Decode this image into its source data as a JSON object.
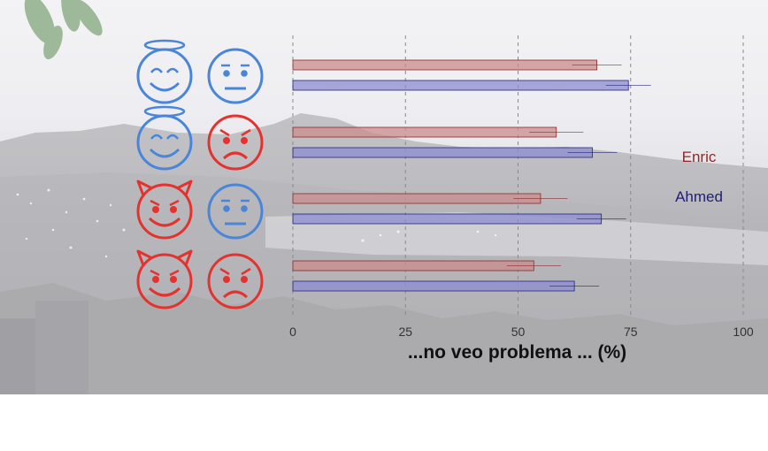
{
  "chart_data": {
    "type": "bar",
    "orientation": "horizontal",
    "xlabel": "...no veo problema ... (%)",
    "xlim": [
      0,
      100
    ],
    "xticks": [
      0,
      25,
      50,
      75,
      100
    ],
    "grid": "vertical dashed",
    "categories": [
      "angel-neutral",
      "angel-angry",
      "devil-neutral",
      "devil-angry"
    ],
    "series": [
      {
        "name": "Enric",
        "color": "#c98c8c",
        "stroke": "#8b2a2a",
        "values": [
          67.5,
          58.5,
          55,
          53.5
        ],
        "error": [
          5.5,
          6,
          6,
          6
        ]
      },
      {
        "name": "Ahmed",
        "color": "#8c8cd0",
        "stroke": "#23237a",
        "values": [
          74.5,
          66.5,
          68.5,
          62.5
        ],
        "error": [
          5,
          5.5,
          5.5,
          5.5
        ]
      }
    ],
    "legend_placement": "right"
  },
  "colors": {
    "legend_enric": "#8b2a2a",
    "legend_ahmed": "#1e1e7a",
    "face_blue": "#4a86d8",
    "face_red": "#e4332e"
  },
  "face_rows": [
    {
      "left": "angel-face-icon",
      "right": "neutral-face-icon"
    },
    {
      "left": "angel-face-icon",
      "right": "angry-face-icon"
    },
    {
      "left": "devil-face-icon",
      "right": "neutral-face-icon"
    },
    {
      "left": "devil-face-icon",
      "right": "angry-face-icon"
    }
  ]
}
